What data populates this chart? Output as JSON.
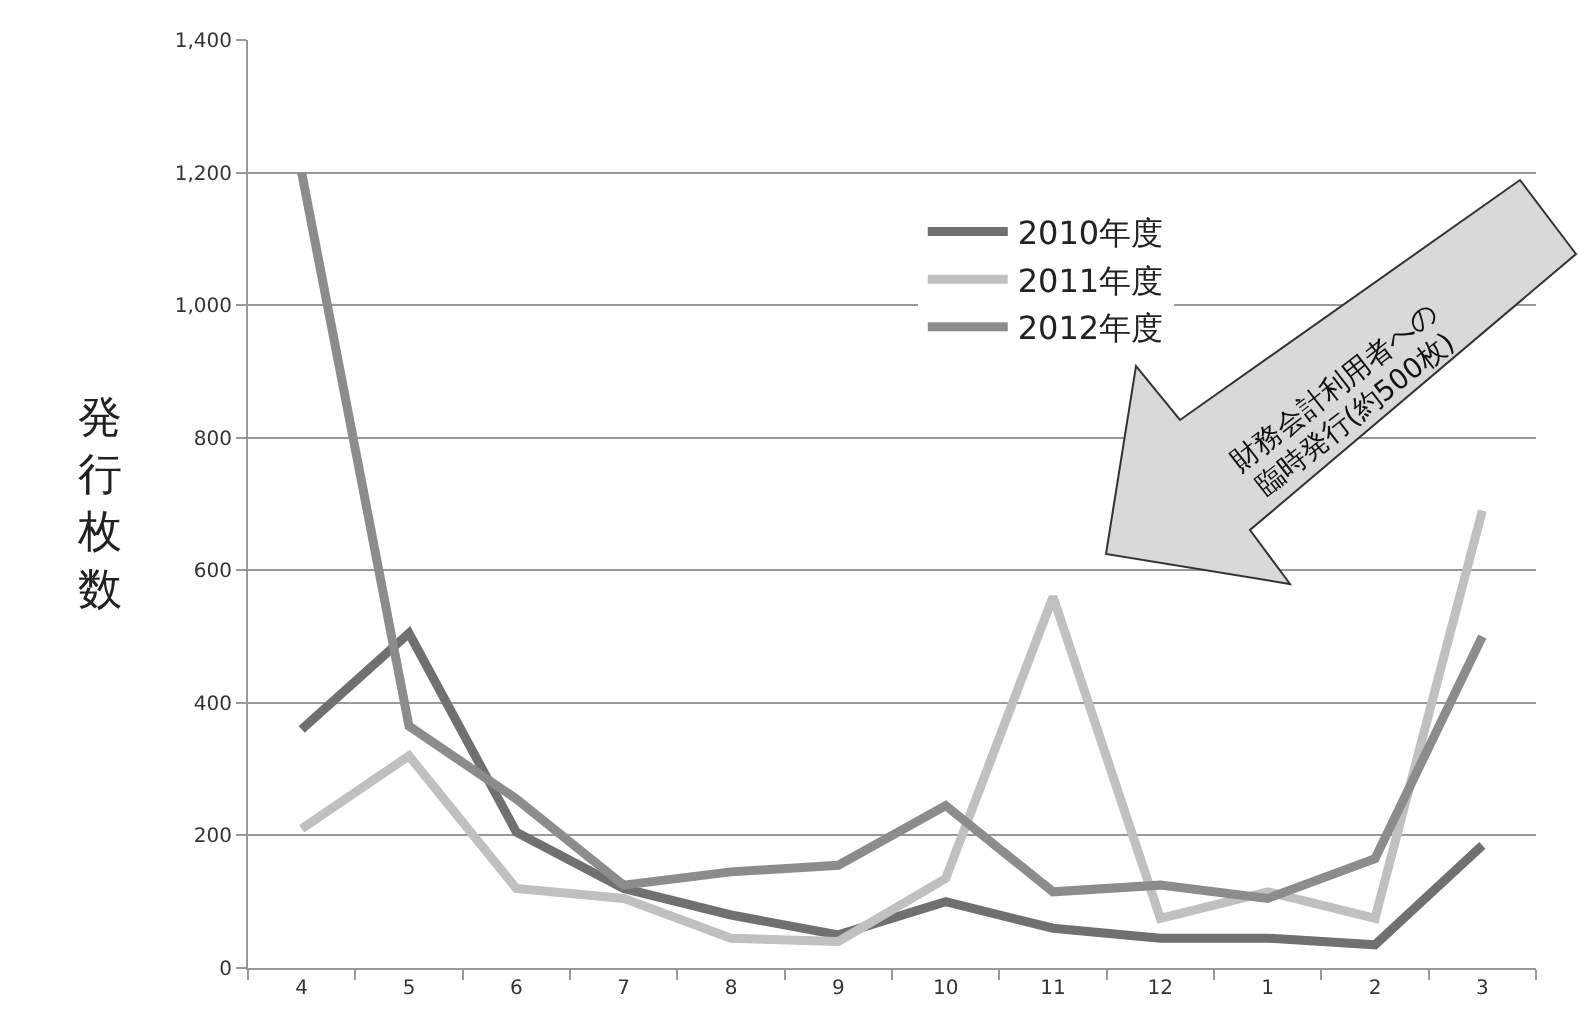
{
  "chart_data": {
    "type": "line",
    "ylabel": "発行枚数",
    "categories": [
      "4",
      "5",
      "6",
      "7",
      "8",
      "9",
      "10",
      "11",
      "12",
      "1",
      "2",
      "3"
    ],
    "series": [
      {
        "name": "2010年度",
        "color": "#707070",
        "values": [
          360,
          505,
          205,
          120,
          80,
          50,
          100,
          60,
          45,
          45,
          35,
          185
        ]
      },
      {
        "name": "2011年度",
        "color": "#c0c0c0",
        "values": [
          210,
          320,
          120,
          105,
          45,
          40,
          135,
          560,
          75,
          115,
          75,
          690
        ]
      },
      {
        "name": "2012年度",
        "color": "#8c8c8c",
        "values": [
          1200,
          365,
          255,
          125,
          145,
          155,
          245,
          115,
          125,
          105,
          165,
          500
        ]
      }
    ],
    "ylim": [
      0,
      1400
    ],
    "yticks": [
      0,
      {
        "value": 200,
        "label": "200"
      },
      {
        "value": 400,
        "label": "400"
      },
      {
        "value": 600,
        "label": "600"
      },
      {
        "value": 800,
        "label": "800"
      },
      {
        "value": 1000,
        "label": "1,000"
      },
      {
        "value": 1200,
        "label": "1,200"
      },
      {
        "value": 1400,
        "label": "1,400"
      }
    ],
    "grid": "y",
    "legend": "top right",
    "marker": "none",
    "line_style": "solid",
    "annotations": [
      "財務会計利用者への\n臨時発行(約500枚)"
    ]
  }
}
